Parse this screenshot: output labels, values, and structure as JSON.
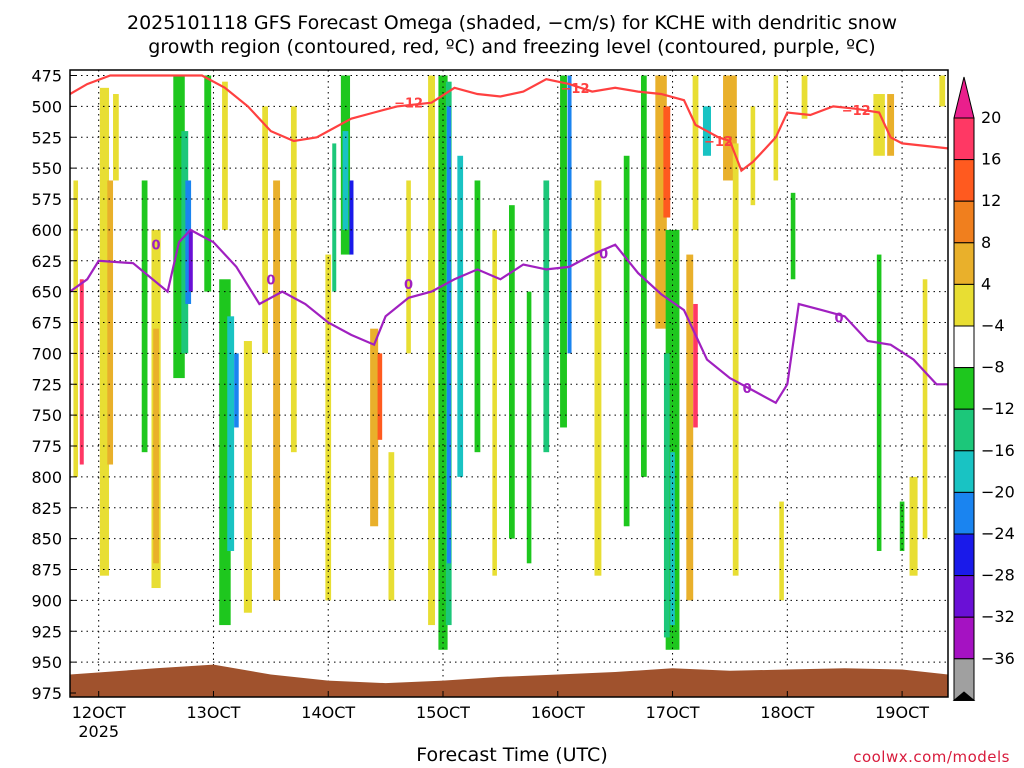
{
  "title_line1": "2025101118 GFS Forecast Omega (shaded, −cm/s) for KCHE with dendritic snow",
  "title_line2": "growth region (contoured, red, ºC) and freezing level (contoured, purple, ºC)",
  "credit": "coolwx.com/models",
  "chart_data": {
    "type": "heatmap",
    "xlabel": "Forecast Time (UTC)",
    "ylabel": "",
    "x_ticks": [
      {
        "day": 12,
        "label": "12OCT"
      },
      {
        "day": 13,
        "label": "13OCT"
      },
      {
        "day": 14,
        "label": "14OCT"
      },
      {
        "day": 15,
        "label": "15OCT"
      },
      {
        "day": 16,
        "label": "16OCT"
      },
      {
        "day": 17,
        "label": "17OCT"
      },
      {
        "day": 18,
        "label": "18OCT"
      },
      {
        "day": 19,
        "label": "19OCT"
      }
    ],
    "x_year_label": "2025",
    "xlim": [
      11.75,
      19.4
    ],
    "y_ticks": [
      475,
      500,
      525,
      550,
      575,
      600,
      625,
      650,
      675,
      700,
      725,
      750,
      775,
      800,
      825,
      850,
      875,
      900,
      925,
      950,
      975
    ],
    "ylim": [
      475,
      975
    ],
    "y_scale": "pressure (hPa), log-like",
    "grid": true,
    "colorbar": {
      "labels": [
        "20",
        "16",
        "12",
        "8",
        "4",
        "−4",
        "−8",
        "−12",
        "−16",
        "−20",
        "−24",
        "−28",
        "−32",
        "−36"
      ],
      "colors": [
        "#ff3864",
        "#ff5a1f",
        "#f07f1e",
        "#e9b02b",
        "#e8de33",
        "#ffffff",
        "#1ec71e",
        "#1cc77a",
        "#19c3c3",
        "#1a84f0",
        "#1a1aea",
        "#6a10d6",
        "#a512c2",
        "#a0a0a0"
      ],
      "top_color": "#ea1f8c",
      "bottom_color": "#000000"
    },
    "terrain_color": "#a0522d",
    "surface_pressure": [
      {
        "day": 11.75,
        "p": 960
      },
      {
        "day": 12.5,
        "p": 955
      },
      {
        "day": 13.0,
        "p": 952
      },
      {
        "day": 13.5,
        "p": 960
      },
      {
        "day": 14.0,
        "p": 965
      },
      {
        "day": 14.5,
        "p": 967
      },
      {
        "day": 15.0,
        "p": 965
      },
      {
        "day": 15.5,
        "p": 962
      },
      {
        "day": 16.0,
        "p": 960
      },
      {
        "day": 16.5,
        "p": 958
      },
      {
        "day": 17.0,
        "p": 955
      },
      {
        "day": 17.5,
        "p": 957
      },
      {
        "day": 18.0,
        "p": 956
      },
      {
        "day": 18.5,
        "p": 955
      },
      {
        "day": 19.0,
        "p": 956
      },
      {
        "day": 19.4,
        "p": 960
      }
    ],
    "series": [
      {
        "name": "−12",
        "color": "#ff4040",
        "label_positions": [
          {
            "day": 14.7,
            "p": 497
          },
          {
            "day": 16.15,
            "p": 485
          },
          {
            "day": 17.4,
            "p": 528
          },
          {
            "day": 18.6,
            "p": 503
          }
        ],
        "points": [
          {
            "day": 11.75,
            "p": 490
          },
          {
            "day": 11.9,
            "p": 482
          },
          {
            "day": 12.1,
            "p": 475
          },
          {
            "day": 12.5,
            "p": 475
          },
          {
            "day": 12.9,
            "p": 475
          },
          {
            "day": 13.1,
            "p": 485
          },
          {
            "day": 13.3,
            "p": 500
          },
          {
            "day": 13.5,
            "p": 520
          },
          {
            "day": 13.7,
            "p": 528
          },
          {
            "day": 13.9,
            "p": 525
          },
          {
            "day": 14.0,
            "p": 520
          },
          {
            "day": 14.2,
            "p": 510
          },
          {
            "day": 14.4,
            "p": 505
          },
          {
            "day": 14.6,
            "p": 500
          },
          {
            "day": 14.9,
            "p": 497
          },
          {
            "day": 15.1,
            "p": 485
          },
          {
            "day": 15.3,
            "p": 490
          },
          {
            "day": 15.5,
            "p": 492
          },
          {
            "day": 15.7,
            "p": 488
          },
          {
            "day": 15.9,
            "p": 478
          },
          {
            "day": 16.1,
            "p": 482
          },
          {
            "day": 16.3,
            "p": 488
          },
          {
            "day": 16.5,
            "p": 485
          },
          {
            "day": 16.7,
            "p": 488
          },
          {
            "day": 16.9,
            "p": 490
          },
          {
            "day": 17.1,
            "p": 495
          },
          {
            "day": 17.2,
            "p": 515
          },
          {
            "day": 17.4,
            "p": 525
          },
          {
            "day": 17.5,
            "p": 528
          },
          {
            "day": 17.6,
            "p": 552
          },
          {
            "day": 17.7,
            "p": 545
          },
          {
            "day": 17.8,
            "p": 535
          },
          {
            "day": 17.9,
            "p": 525
          },
          {
            "day": 18.0,
            "p": 505
          },
          {
            "day": 18.2,
            "p": 507
          },
          {
            "day": 18.4,
            "p": 500
          },
          {
            "day": 18.6,
            "p": 502
          },
          {
            "day": 18.8,
            "p": 505
          },
          {
            "day": 18.9,
            "p": 525
          },
          {
            "day": 19.0,
            "p": 530
          },
          {
            "day": 19.2,
            "p": 532
          },
          {
            "day": 19.4,
            "p": 534
          }
        ]
      },
      {
        "name": "0",
        "color": "#a020c0",
        "label_positions": [
          {
            "day": 12.5,
            "p": 612
          },
          {
            "day": 13.5,
            "p": 640
          },
          {
            "day": 14.7,
            "p": 644
          },
          {
            "day": 16.4,
            "p": 619
          },
          {
            "day": 17.65,
            "p": 728
          },
          {
            "day": 18.45,
            "p": 671
          }
        ],
        "points": [
          {
            "day": 11.75,
            "p": 650
          },
          {
            "day": 11.9,
            "p": 640
          },
          {
            "day": 12.0,
            "p": 625
          },
          {
            "day": 12.3,
            "p": 627
          },
          {
            "day": 12.6,
            "p": 650
          },
          {
            "day": 12.7,
            "p": 610
          },
          {
            "day": 12.8,
            "p": 600
          },
          {
            "day": 12.9,
            "p": 605
          },
          {
            "day": 13.0,
            "p": 610
          },
          {
            "day": 13.2,
            "p": 630
          },
          {
            "day": 13.4,
            "p": 660
          },
          {
            "day": 13.6,
            "p": 650
          },
          {
            "day": 13.8,
            "p": 660
          },
          {
            "day": 14.0,
            "p": 675
          },
          {
            "day": 14.2,
            "p": 685
          },
          {
            "day": 14.4,
            "p": 693
          },
          {
            "day": 14.5,
            "p": 670
          },
          {
            "day": 14.7,
            "p": 655
          },
          {
            "day": 14.9,
            "p": 650
          },
          {
            "day": 15.1,
            "p": 640
          },
          {
            "day": 15.3,
            "p": 632
          },
          {
            "day": 15.5,
            "p": 640
          },
          {
            "day": 15.7,
            "p": 628
          },
          {
            "day": 15.9,
            "p": 632
          },
          {
            "day": 16.1,
            "p": 630
          },
          {
            "day": 16.3,
            "p": 620
          },
          {
            "day": 16.5,
            "p": 612
          },
          {
            "day": 16.7,
            "p": 635
          },
          {
            "day": 16.9,
            "p": 652
          },
          {
            "day": 17.1,
            "p": 665
          },
          {
            "day": 17.3,
            "p": 705
          },
          {
            "day": 17.5,
            "p": 720
          },
          {
            "day": 17.7,
            "p": 730
          },
          {
            "day": 17.9,
            "p": 740
          },
          {
            "day": 18.0,
            "p": 725
          },
          {
            "day": 18.1,
            "p": 660
          },
          {
            "day": 18.3,
            "p": 665
          },
          {
            "day": 18.5,
            "p": 670
          },
          {
            "day": 18.7,
            "p": 690
          },
          {
            "day": 18.9,
            "p": 693
          },
          {
            "day": 19.1,
            "p": 705
          },
          {
            "day": 19.3,
            "p": 725
          },
          {
            "day": 19.4,
            "p": 725
          }
        ]
      }
    ]
  }
}
